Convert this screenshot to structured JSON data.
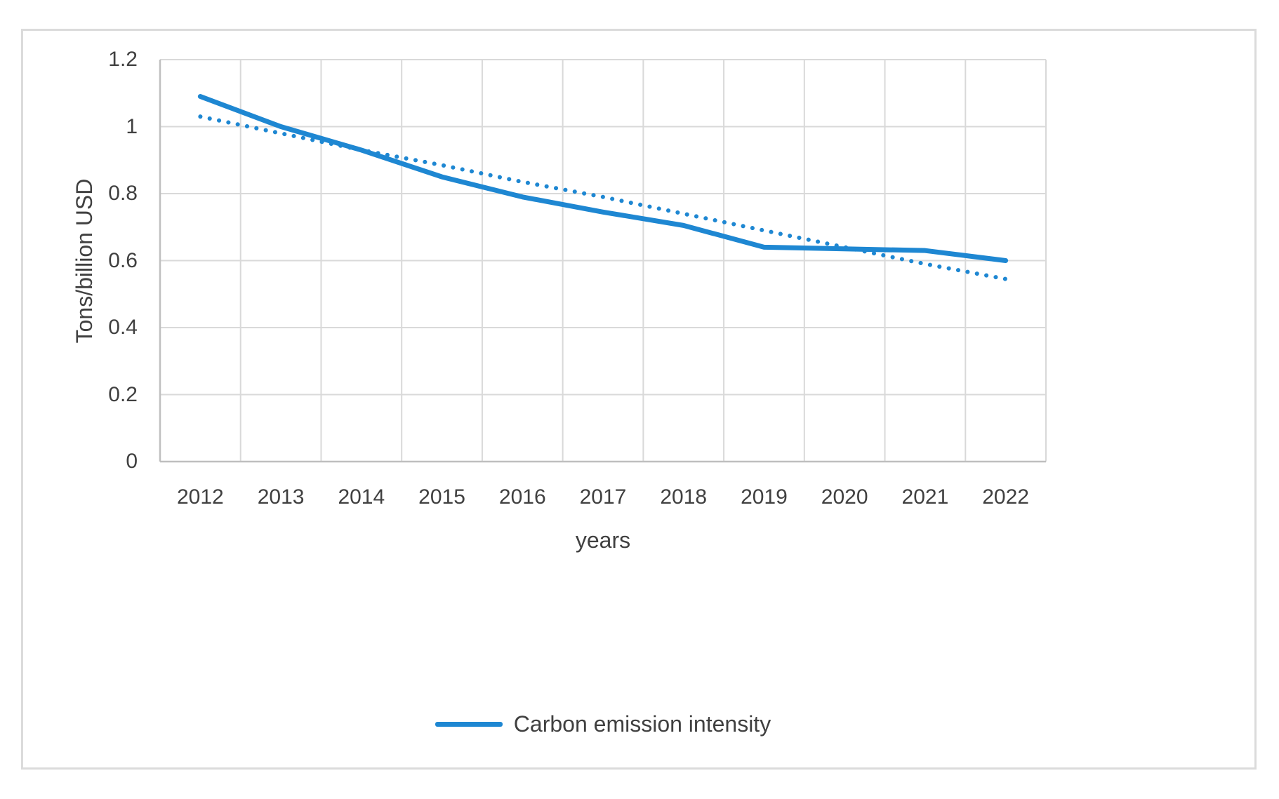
{
  "figure": {
    "frame_border_color": "#dbdbdb",
    "background_color": "#ffffff"
  },
  "chart_data": {
    "type": "line",
    "title": "",
    "xlabel": "years",
    "ylabel": "Tons/billion USD",
    "categories": [
      "2012",
      "2013",
      "2014",
      "2015",
      "2016",
      "2017",
      "2018",
      "2019",
      "2020",
      "2021",
      "2022"
    ],
    "ylim": [
      0,
      1.2
    ],
    "ytick_values": [
      0,
      0.2,
      0.4,
      0.6,
      0.8,
      1.0,
      1.2
    ],
    "ytick_labels": [
      "0",
      "0.2",
      "0.4",
      "0.6",
      "0.8",
      "1",
      "1.2"
    ],
    "grid": true,
    "gridline_color": "#d9d9d9",
    "axis_line_color": "#bfbfbf",
    "text_color": "#404040",
    "legend_position": "bottom-center",
    "series": [
      {
        "name": "Carbon emission intensity",
        "style": "solid",
        "color": "#1e87d2",
        "in_legend": true,
        "values": [
          1.09,
          1.0,
          0.93,
          0.85,
          0.79,
          0.745,
          0.705,
          0.64,
          0.635,
          0.63,
          0.6
        ]
      },
      {
        "name": "Linear trendline",
        "style": "dotted",
        "color": "#1e87d2",
        "in_legend": false,
        "values": [
          1.03,
          0.98,
          0.93,
          0.885,
          0.835,
          0.79,
          0.74,
          0.69,
          0.64,
          0.59,
          0.545
        ]
      }
    ]
  },
  "legend": {
    "label": "Carbon emission intensity"
  }
}
